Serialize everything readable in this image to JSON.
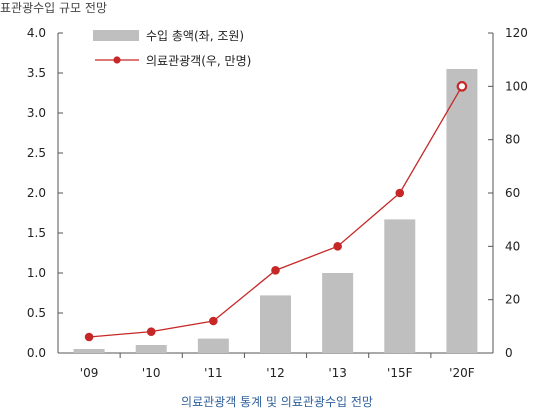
{
  "header_text": "표관광수입 규모 전망",
  "chart_data": {
    "type": "bar+line",
    "categories": [
      "'09",
      "'10",
      "'11",
      "'12",
      "'13",
      "'15F",
      "'20F"
    ],
    "series": [
      {
        "name": "수입 총액(좌, 조원)",
        "type": "bar",
        "axis": "left",
        "values": [
          0.05,
          0.1,
          0.18,
          0.72,
          1.0,
          1.67,
          3.55
        ]
      },
      {
        "name": "의료관광객(우, 만명)",
        "type": "line",
        "axis": "right",
        "values": [
          6,
          8,
          12,
          31,
          40,
          60,
          100
        ]
      }
    ],
    "y_left": {
      "range": [
        0,
        4.0
      ],
      "ticks": [
        "0.0",
        "0.5",
        "1.0",
        "1.5",
        "2.0",
        "2.5",
        "3.0",
        "3.5",
        "4.0"
      ]
    },
    "y_right": {
      "range": [
        0,
        120
      ],
      "ticks": [
        "0",
        "20",
        "40",
        "60",
        "80",
        "100",
        "120"
      ]
    },
    "caption": "의료관광객 통계 및 의료관광수입 전망",
    "legend_placement": "top-left",
    "colors": {
      "bar": "#bfbfbf",
      "line": "#c62828",
      "marker_fill": "#c62828",
      "marker_last": "#ffffff",
      "caption": "#2f5f9a"
    },
    "grid": false
  }
}
